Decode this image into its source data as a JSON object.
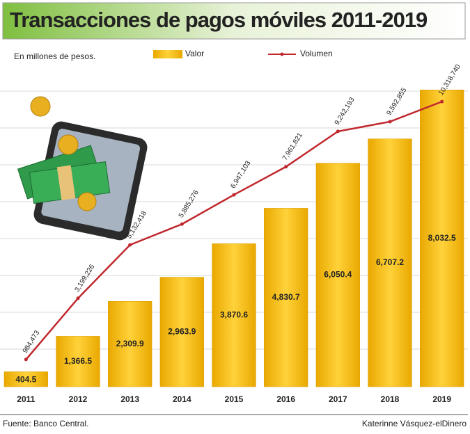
{
  "chart_data": {
    "type": "bar",
    "title": "Transacciones de pagos móviles 2011-2019",
    "subtitle": "En millones de pesos.",
    "categories": [
      "2011",
      "2012",
      "2013",
      "2014",
      "2015",
      "2016",
      "2017",
      "2018",
      "2019"
    ],
    "series": [
      {
        "name": "Valor",
        "color": "#f4b400",
        "values": [
          404.5,
          1366.5,
          2309.9,
          2963.9,
          3870.6,
          4830.7,
          6050.4,
          6707.2,
          8032.5
        ],
        "value_labels": [
          "404.5",
          "1,366.5",
          "2,309.9",
          "2,963.9",
          "3,870.6",
          "4,830.7",
          "6,050.4",
          "6,707.2",
          "8,032.5"
        ]
      },
      {
        "name": "Volumen",
        "color": "#c0272d",
        "axis": "y2",
        "values": [
          984473,
          3199226,
          5132418,
          5885276,
          6947103,
          7961821,
          9242193,
          9592855,
          10318740
        ],
        "value_labels": [
          "984,473",
          "3,199,226",
          "5,132,418",
          "5,885,276",
          "6,947,103",
          "7,961,821",
          "9,242,193",
          "9,592,855",
          "10,318,740"
        ]
      }
    ],
    "ylim": [
      0,
      8000
    ],
    "y2lim": [
      0,
      10700000
    ],
    "source": "Fuente: Banco Central.",
    "credit": "Katerinne Vásquez-elDinero"
  }
}
